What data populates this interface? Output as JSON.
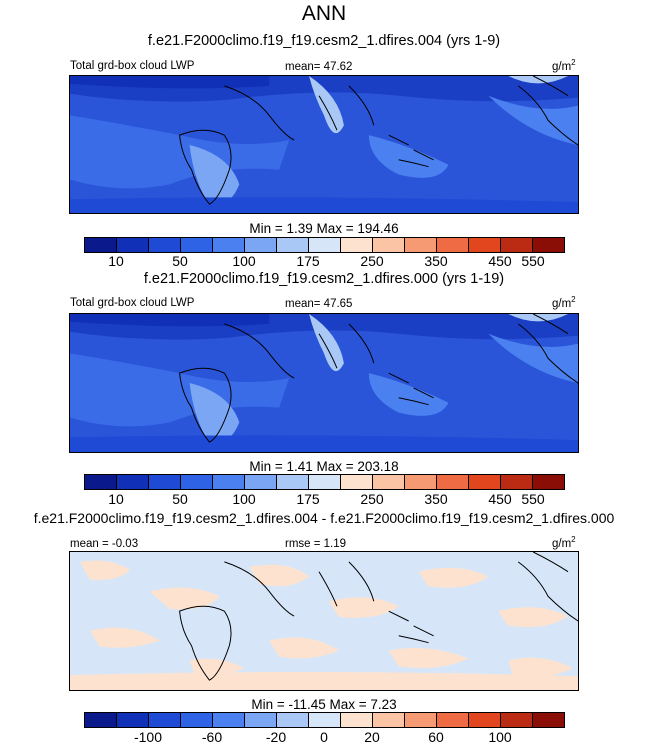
{
  "page_title": "ANN",
  "panels": [
    {
      "case_title": "f.e21.F2000climo.f19_f19.cesm2_1.dfires.004 (yrs 1-9)",
      "left_label": "Total grd-box cloud LWP",
      "center_label": "mean=  47.62",
      "units": "g/m",
      "units_exp": "2",
      "minmax": "Min =   1.39 Max = 194.46",
      "colorbar_labels": [
        "10",
        "50",
        "100",
        "175",
        "250",
        "350",
        "450",
        "550"
      ]
    },
    {
      "case_title": "f.e21.F2000climo.f19_f19.cesm2_1.dfires.000 (yrs 1-19)",
      "left_label": "Total grd-box cloud LWP",
      "center_label": "mean=  47.65",
      "units": "g/m",
      "units_exp": "2",
      "minmax": "Min =   1.41 Max = 203.18",
      "colorbar_labels": [
        "10",
        "50",
        "100",
        "175",
        "250",
        "350",
        "450",
        "550"
      ]
    },
    {
      "case_title": "f.e21.F2000climo.f19_f19.cesm2_1.dfires.004 - f.e21.F2000climo.f19_f19.cesm2_1.dfires.000",
      "left_label": "mean =  -0.03",
      "center_label": "rmse =   1.19",
      "units": "g/m",
      "units_exp": "2",
      "minmax": "Min = -11.45 Max =   7.23",
      "colorbar_labels": [
        "-100",
        "-60",
        "-20",
        "0",
        "20",
        "60",
        "100"
      ]
    }
  ],
  "colors": {
    "colorbar": [
      "#0a1a8c",
      "#1030b8",
      "#1e4ad6",
      "#2f63e6",
      "#4a80ef",
      "#7aa6f3",
      "#a9c8f6",
      "#d6e6f8",
      "#fde3cf",
      "#fbc4a4",
      "#f69a74",
      "#ef6b43",
      "#e2461f",
      "#bb2a12",
      "#8a0d06"
    ],
    "field_base": "#2a55d9",
    "land_line": "#000000"
  }
}
